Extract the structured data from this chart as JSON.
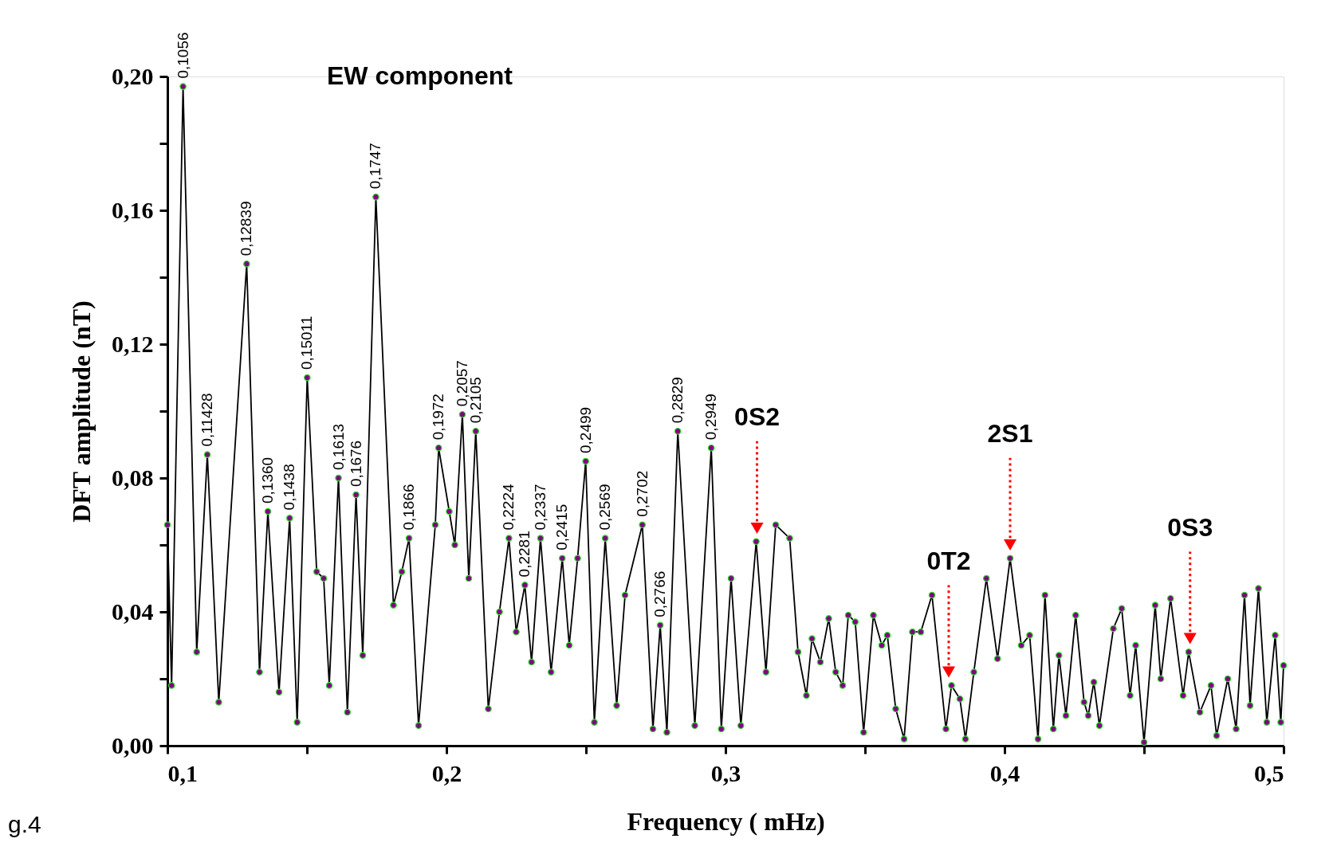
{
  "chart_data": {
    "type": "line",
    "title": "EW component",
    "xlabel": "Frequency ( mHz)",
    "ylabel": "DFT amplitude (nT)",
    "xlim": [
      0.1,
      0.5
    ],
    "ylim": [
      0,
      0.2
    ],
    "xticks": [
      {
        "value": 0.1,
        "label": "0,1"
      },
      {
        "value": 0.15,
        "label": null
      },
      {
        "value": 0.2,
        "label": "0,2"
      },
      {
        "value": 0.25,
        "label": null
      },
      {
        "value": 0.3,
        "label": "0,3"
      },
      {
        "value": 0.35,
        "label": null
      },
      {
        "value": 0.4,
        "label": "0,4"
      },
      {
        "value": 0.45,
        "label": null
      },
      {
        "value": 0.5,
        "label": "0,5"
      }
    ],
    "yticks": [
      {
        "value": 0,
        "label": "0,00"
      },
      {
        "value": 0.02,
        "label": null
      },
      {
        "value": 0.04,
        "label": "0,04"
      },
      {
        "value": 0.06,
        "label": null
      },
      {
        "value": 0.08,
        "label": "0,08"
      },
      {
        "value": 0.1,
        "label": null
      },
      {
        "value": 0.12,
        "label": "0,12"
      },
      {
        "value": 0.14,
        "label": null
      },
      {
        "value": 0.16,
        "label": "0,16"
      },
      {
        "value": 0.18,
        "label": null
      },
      {
        "value": 0.2,
        "label": "0,20"
      }
    ],
    "grid": false,
    "marker": "circle",
    "line_style": "solid",
    "series": [
      {
        "color": "#800080",
        "x": [
          0.1,
          0.1015,
          0.1056,
          0.1105,
          0.1143,
          0.1184,
          0.1284,
          0.133,
          0.136,
          0.14,
          0.1438,
          0.1465,
          0.1501,
          0.1535,
          0.156,
          0.158,
          0.1613,
          0.1645,
          0.1676,
          0.17,
          0.1747,
          0.181,
          0.184,
          0.1866,
          0.19,
          0.196,
          0.1972,
          0.201,
          0.203,
          0.2057,
          0.208,
          0.2105,
          0.215,
          0.219,
          0.2224,
          0.225,
          0.2281,
          0.2305,
          0.2337,
          0.2375,
          0.2415,
          0.244,
          0.247,
          0.2499,
          0.253,
          0.2569,
          0.261,
          0.264,
          0.2702,
          0.274,
          0.2766,
          0.279,
          0.2829,
          0.289,
          0.2949,
          0.2985,
          0.302,
          0.3055,
          0.311,
          0.3145,
          0.318,
          0.323,
          0.326,
          0.329,
          0.331,
          0.334,
          0.337,
          0.3395,
          0.342,
          0.344,
          0.3465,
          0.3495,
          0.353,
          0.356,
          0.358,
          0.361,
          0.364,
          0.367,
          0.37,
          0.374,
          0.379,
          0.381,
          0.384,
          0.386,
          0.389,
          0.3935,
          0.3975,
          0.402,
          0.406,
          0.409,
          0.412,
          0.4145,
          0.4175,
          0.4195,
          0.422,
          0.4255,
          0.4285,
          0.43,
          0.432,
          0.434,
          0.439,
          0.442,
          0.445,
          0.447,
          0.45,
          0.454,
          0.456,
          0.4595,
          0.464,
          0.466,
          0.47,
          0.474,
          0.476,
          0.48,
          0.483,
          0.486,
          0.488,
          0.491,
          0.494,
          0.497,
          0.499,
          0.5
        ],
        "values": [
          0.066,
          0.018,
          0.197,
          0.028,
          0.087,
          0.013,
          0.144,
          0.022,
          0.07,
          0.016,
          0.068,
          0.007,
          0.11,
          0.052,
          0.05,
          0.018,
          0.08,
          0.01,
          0.075,
          0.027,
          0.164,
          0.042,
          0.052,
          0.062,
          0.006,
          0.066,
          0.089,
          0.07,
          0.06,
          0.099,
          0.05,
          0.094,
          0.011,
          0.04,
          0.062,
          0.034,
          0.048,
          0.025,
          0.062,
          0.022,
          0.056,
          0.03,
          0.056,
          0.085,
          0.007,
          0.062,
          0.012,
          0.045,
          0.066,
          0.005,
          0.036,
          0.004,
          0.094,
          0.006,
          0.089,
          0.005,
          0.05,
          0.006,
          0.061,
          0.022,
          0.066,
          0.062,
          0.028,
          0.015,
          0.032,
          0.025,
          0.038,
          0.022,
          0.018,
          0.039,
          0.037,
          0.004,
          0.039,
          0.03,
          0.033,
          0.011,
          0.002,
          0.034,
          0.034,
          0.045,
          0.005,
          0.018,
          0.014,
          0.002,
          0.022,
          0.05,
          0.026,
          0.056,
          0.03,
          0.033,
          0.002,
          0.045,
          0.005,
          0.027,
          0.009,
          0.039,
          0.013,
          0.009,
          0.019,
          0.006,
          0.035,
          0.041,
          0.015,
          0.03,
          0.001,
          0.042,
          0.02,
          0.044,
          0.015,
          0.028,
          0.01,
          0.018,
          0.003,
          0.02,
          0.005,
          0.045,
          0.012,
          0.047,
          0.007,
          0.033,
          0.007,
          0.024
        ]
      }
    ],
    "annotations": [
      {
        "text": "0,1056",
        "x": 0.1056,
        "y": 0.197
      },
      {
        "text": "0,11428",
        "x": 0.1143,
        "y": 0.087
      },
      {
        "text": "0,12839",
        "x": 0.1284,
        "y": 0.144
      },
      {
        "text": "0,1360",
        "x": 0.136,
        "y": 0.07
      },
      {
        "text": "0,1438",
        "x": 0.1438,
        "y": 0.068
      },
      {
        "text": "0,15011",
        "x": 0.1501,
        "y": 0.11
      },
      {
        "text": "0,1613",
        "x": 0.1613,
        "y": 0.08
      },
      {
        "text": "0,1676",
        "x": 0.1676,
        "y": 0.075
      },
      {
        "text": "0,1747",
        "x": 0.1747,
        "y": 0.164
      },
      {
        "text": "0,1866",
        "x": 0.1866,
        "y": 0.062
      },
      {
        "text": "0,1972",
        "x": 0.1972,
        "y": 0.089
      },
      {
        "text": "0,2057",
        "x": 0.2057,
        "y": 0.099
      },
      {
        "text": "0,2105",
        "x": 0.2105,
        "y": 0.094
      },
      {
        "text": "0,2224",
        "x": 0.2224,
        "y": 0.062
      },
      {
        "text": "0,2281",
        "x": 0.2281,
        "y": 0.048
      },
      {
        "text": "0,2337",
        "x": 0.2337,
        "y": 0.062
      },
      {
        "text": "0,2415",
        "x": 0.2415,
        "y": 0.056
      },
      {
        "text": "0,2499",
        "x": 0.2499,
        "y": 0.085
      },
      {
        "text": "0,2569",
        "x": 0.2569,
        "y": 0.062
      },
      {
        "text": "0,2702",
        "x": 0.2702,
        "y": 0.066
      },
      {
        "text": "0,2766",
        "x": 0.2766,
        "y": 0.036
      },
      {
        "text": "0,2829",
        "x": 0.2829,
        "y": 0.094
      },
      {
        "text": "0,2949",
        "x": 0.2949,
        "y": 0.089
      },
      {
        "text": "0S2",
        "x": 0.3113,
        "y": 0.065
      },
      {
        "text": "0T2",
        "x": 0.38,
        "y": 0.022
      },
      {
        "text": "2S1",
        "x": 0.402,
        "y": 0.06
      },
      {
        "text": "0S3",
        "x": 0.4665,
        "y": 0.032
      },
      "g.4"
    ]
  }
}
